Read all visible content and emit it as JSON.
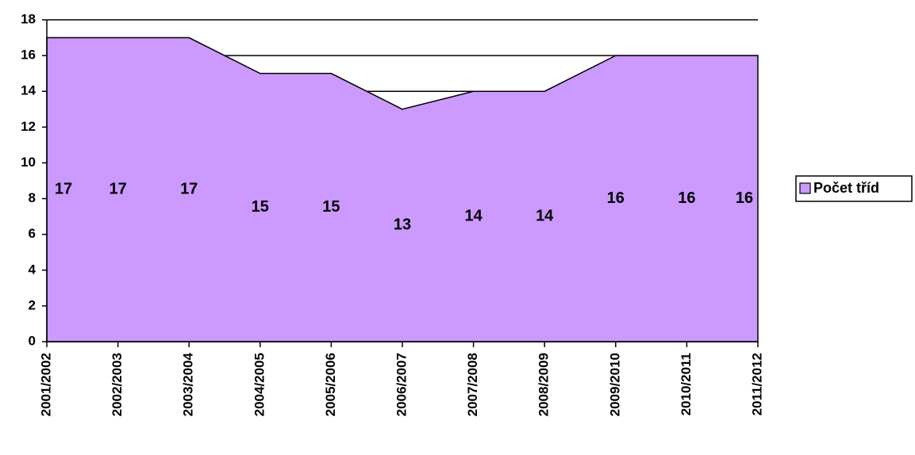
{
  "chart_data": {
    "type": "area",
    "categories": [
      "2001/2002",
      "2002/2003",
      "2003/2004",
      "2004/2005",
      "2005/2006",
      "2006/2007",
      "2007/2008",
      "2008/2009",
      "2009/2010",
      "2010/2011",
      "2011/2012"
    ],
    "series": [
      {
        "name": "Počet tříd",
        "color": "#cc99ff",
        "values": [
          17,
          17,
          17,
          15,
          15,
          13,
          14,
          14,
          16,
          16,
          16
        ]
      }
    ],
    "ylim": [
      0,
      18
    ],
    "yticks": [
      0,
      2,
      4,
      6,
      8,
      10,
      12,
      14,
      16,
      18
    ],
    "grid": true,
    "legend": "right",
    "data_labels": true
  }
}
